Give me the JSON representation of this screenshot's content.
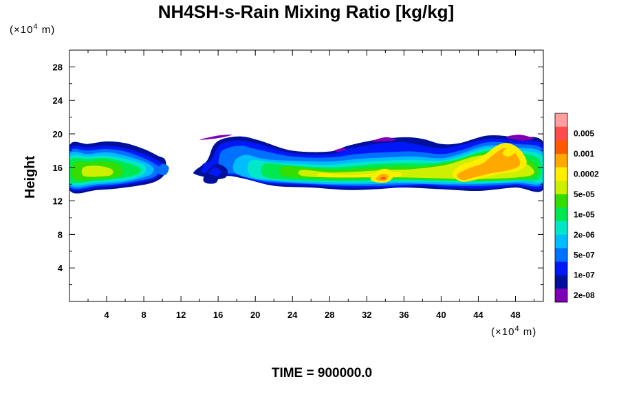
{
  "chart_data": {
    "type": "heatmap",
    "title": "NH4SH-s-Rain Mixing Ratio [kg/kg]",
    "ylabel": "Height",
    "x_unit": "(×10",
    "y_unit": "(×10",
    "unit_exp": "4",
    "unit_tail": " m)",
    "xlim": [
      0,
      51
    ],
    "ylim": [
      0,
      30
    ],
    "x_ticks": [
      "4",
      "8",
      "12",
      "16",
      "20",
      "24",
      "28",
      "32",
      "36",
      "40",
      "44",
      "48"
    ],
    "x_tick_values": [
      4,
      8,
      12,
      16,
      20,
      24,
      28,
      32,
      36,
      40,
      44,
      48
    ],
    "y_ticks": [
      "4",
      "8",
      "12",
      "16",
      "20",
      "24",
      "28"
    ],
    "y_tick_values": [
      4,
      8,
      12,
      16,
      20,
      24,
      28
    ],
    "colorbar": {
      "labels": [
        "0.005",
        "0.001",
        "0.0002",
        "5e-05",
        "1e-05",
        "2e-06",
        "5e-07",
        "1e-07",
        "2e-08"
      ],
      "colors": [
        "#ff9fa0",
        "#ff4d4d",
        "#ff5a00",
        "#ffa800",
        "#ffee00",
        "#ccf000",
        "#33dd00",
        "#00e850",
        "#00e8c8",
        "#00bdff",
        "#0070ff",
        "#0018f8",
        "#00109a",
        "#7d00b4"
      ]
    },
    "field": {
      "cloud_base": 13.5,
      "dense_regions": [
        {
          "x_range": [
            0,
            10
          ],
          "top": 19
        },
        {
          "x_range": [
            15,
            26
          ],
          "top": 19.5
        },
        {
          "x_range": [
            26,
            35
          ],
          "top": 19
        },
        {
          "x_range": [
            40,
            51
          ],
          "top": 19.5
        }
      ],
      "gap_x_range": [
        10,
        15
      ],
      "max_region": {
        "x_range": [
          41,
          49
        ],
        "y_range": [
          14,
          19
        ],
        "level": "0.0002"
      }
    },
    "footer": "TIME = 900000.0"
  }
}
